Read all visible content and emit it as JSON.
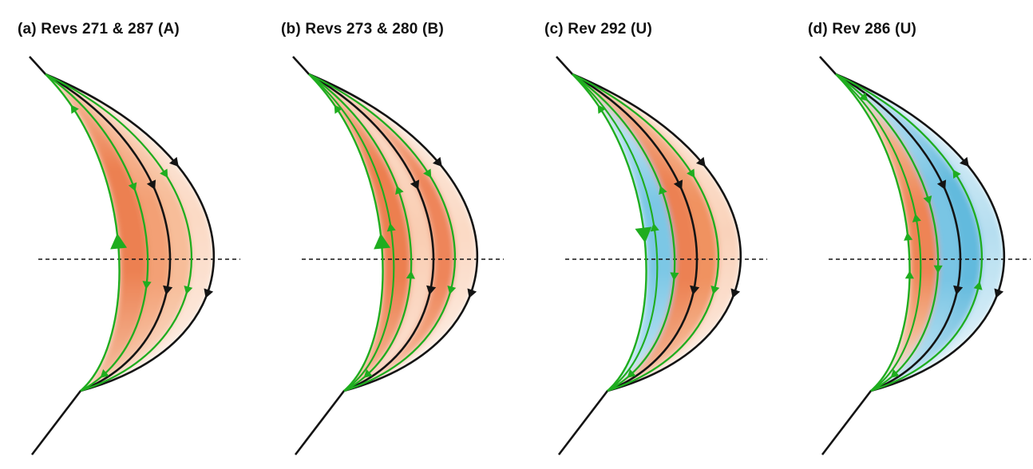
{
  "figure": {
    "description": "Four-panel schematic of nested magnetic field lines (black) and flow streamlines (green) in a crescent magnetosphere cross-section with dashed equator line and shaded current regions",
    "colors": {
      "background": "#ffffff",
      "field_line_black": "#141414",
      "flow_line_green": "#1fad1f",
      "deep_orange": "#ec8051",
      "deep_blue": "#6fc1e2"
    },
    "panels": [
      {
        "id": "a",
        "title": "(a) Revs 271 & 287 (A)",
        "extra_inner_line": false,
        "bands": [
          {
            "inner": "G1",
            "outer": "G2",
            "stops": [
              [
                0,
                "#f6bf9f"
              ],
              [
                0.3,
                "#ec8051"
              ],
              [
                0.62,
                "#ec8051"
              ],
              [
                1,
                "#f6c4a6"
              ]
            ]
          },
          {
            "inner": "G2",
            "outer": "K1",
            "stops": [
              [
                0,
                "#f8cdb2"
              ],
              [
                0.4,
                "#f3a075"
              ],
              [
                0.65,
                "#f3a075"
              ],
              [
                1,
                "#f8d2ba"
              ]
            ]
          },
          {
            "inner": "K1",
            "outer": "G3",
            "stops": [
              [
                0,
                "#fbdecb"
              ],
              [
                0.4,
                "#f7bd99"
              ],
              [
                0.65,
                "#f7bd99"
              ],
              [
                1,
                "#fadfce"
              ]
            ]
          },
          {
            "inner": "G3",
            "outer": "K2",
            "stops": [
              [
                0,
                "#fdeee3"
              ],
              [
                0.45,
                "#fbd9c4"
              ],
              [
                1,
                "#fdefe6"
              ]
            ]
          }
        ],
        "arrows": [
          {
            "line": "K2",
            "t": 0.27,
            "dir": "S",
            "kind": "black"
          },
          {
            "line": "K2",
            "t": 0.625,
            "dir": "S",
            "kind": "black"
          },
          {
            "line": "K1",
            "t": 0.33,
            "dir": "S",
            "kind": "black"
          },
          {
            "line": "K1",
            "t": 0.615,
            "dir": "S",
            "kind": "black"
          },
          {
            "line": "G3",
            "t": 0.3,
            "dir": "S",
            "kind": "green"
          },
          {
            "line": "G3",
            "t": 0.615,
            "dir": "S",
            "kind": "green"
          },
          {
            "line": "G2",
            "t": 0.335,
            "dir": "S",
            "kind": "green"
          },
          {
            "line": "G2",
            "t": 0.6,
            "dir": "S",
            "kind": "green"
          },
          {
            "line": "G2",
            "t": 0.91,
            "dir": "S",
            "kind": "green"
          },
          {
            "line": "G1",
            "t": 0.115,
            "dir": "N",
            "kind": "green"
          },
          {
            "line": "G1",
            "t": 0.485,
            "dir": "N",
            "kind": "big"
          }
        ]
      },
      {
        "id": "b",
        "title": "(b) Revs 273 & 280 (B)",
        "extra_inner_line": true,
        "bands": [
          {
            "inner": "G1",
            "outer": "G2",
            "stops": [
              [
                0,
                "#f6c09f"
              ],
              [
                0.3,
                "#ec7f50"
              ],
              [
                0.65,
                "#ec7f50"
              ],
              [
                1,
                "#f5bd9c"
              ]
            ]
          },
          {
            "inner": "G2",
            "outer": "K1",
            "stops": [
              [
                0,
                "#fbe0cf"
              ],
              [
                0.5,
                "#f9cdb2"
              ],
              [
                1,
                "#fce4d6"
              ]
            ]
          },
          {
            "inner": "K1",
            "outer": "G3",
            "stops": [
              [
                0,
                "#f8c8a9"
              ],
              [
                0.35,
                "#ee855a"
              ],
              [
                0.65,
                "#ee855a"
              ],
              [
                1,
                "#f7c2a1"
              ]
            ]
          },
          {
            "inner": "G3",
            "outer": "K2",
            "stops": [
              [
                0,
                "#fdeee3"
              ],
              [
                0.5,
                "#fbd9c4"
              ],
              [
                1,
                "#fdf0e8"
              ]
            ]
          }
        ],
        "arrows": [
          {
            "line": "K2",
            "t": 0.27,
            "dir": "S",
            "kind": "black"
          },
          {
            "line": "K2",
            "t": 0.625,
            "dir": "S",
            "kind": "black"
          },
          {
            "line": "K1",
            "t": 0.33,
            "dir": "S",
            "kind": "black"
          },
          {
            "line": "K1",
            "t": 0.615,
            "dir": "S",
            "kind": "black"
          },
          {
            "line": "G3",
            "t": 0.3,
            "dir": "S",
            "kind": "green"
          },
          {
            "line": "G3",
            "t": 0.615,
            "dir": "S",
            "kind": "green"
          },
          {
            "line": "G2",
            "t": 0.345,
            "dir": "N",
            "kind": "green"
          },
          {
            "line": "G2",
            "t": 0.575,
            "dir": "N",
            "kind": "green"
          },
          {
            "line": "G2",
            "t": 0.91,
            "dir": "S",
            "kind": "green"
          },
          {
            "line": "Ga",
            "t": 0.445,
            "dir": "N",
            "kind": "green"
          },
          {
            "line": "G1",
            "t": 0.115,
            "dir": "N",
            "kind": "green"
          },
          {
            "line": "G1",
            "t": 0.485,
            "dir": "N",
            "kind": "big"
          }
        ]
      },
      {
        "id": "c",
        "title": "(c) Rev 292 (U)",
        "extra_inner_line": true,
        "bands": [
          {
            "inner": "G1",
            "outer": "G2",
            "stops": [
              [
                0,
                "#f7cdb4"
              ],
              [
                0.18,
                "#b4dff0"
              ],
              [
                0.4,
                "#7cc7e5"
              ],
              [
                0.62,
                "#7cc7e5"
              ],
              [
                0.85,
                "#aadcef"
              ],
              [
                1,
                "#e2f2fa"
              ]
            ]
          },
          {
            "inner": "G2",
            "outer": "K1",
            "stops": [
              [
                0,
                "#f6bf9e"
              ],
              [
                0.35,
                "#ec8152"
              ],
              [
                0.65,
                "#ec8152"
              ],
              [
                1,
                "#f5bd9c"
              ]
            ]
          },
          {
            "inner": "K1",
            "outer": "G3",
            "stops": [
              [
                0,
                "#f8c9ab"
              ],
              [
                0.4,
                "#f09261"
              ],
              [
                0.65,
                "#f09261"
              ],
              [
                1,
                "#f8cbae"
              ]
            ]
          },
          {
            "inner": "G3",
            "outer": "K2",
            "stops": [
              [
                0,
                "#fdeada"
              ],
              [
                0.5,
                "#f9d2ba"
              ],
              [
                1,
                "#fdeee4"
              ]
            ]
          }
        ],
        "arrows": [
          {
            "line": "K2",
            "t": 0.27,
            "dir": "S",
            "kind": "black"
          },
          {
            "line": "K2",
            "t": 0.625,
            "dir": "S",
            "kind": "black"
          },
          {
            "line": "K1",
            "t": 0.33,
            "dir": "S",
            "kind": "black"
          },
          {
            "line": "K1",
            "t": 0.615,
            "dir": "S",
            "kind": "black"
          },
          {
            "line": "G3",
            "t": 0.3,
            "dir": "S",
            "kind": "green"
          },
          {
            "line": "G3",
            "t": 0.615,
            "dir": "S",
            "kind": "green"
          },
          {
            "line": "G2",
            "t": 0.345,
            "dir": "N",
            "kind": "green"
          },
          {
            "line": "G2",
            "t": 0.575,
            "dir": "S",
            "kind": "green"
          },
          {
            "line": "G2",
            "t": 0.91,
            "dir": "S",
            "kind": "green"
          },
          {
            "line": "Ga",
            "t": 0.445,
            "dir": "N",
            "kind": "green"
          },
          {
            "line": "G1",
            "t": 0.115,
            "dir": "N",
            "kind": "green"
          },
          {
            "line": "G1",
            "t": 0.46,
            "dir": "S",
            "kind": "big"
          }
        ]
      },
      {
        "id": "d",
        "title": "(d) Rev 286 (U)",
        "extra_inner_line": true,
        "bands": [
          {
            "inner": "G1",
            "outer": "G2",
            "stops": [
              [
                0,
                "#ddeef7"
              ],
              [
                0.22,
                "#f2ae85"
              ],
              [
                0.42,
                "#ee8455"
              ],
              [
                0.62,
                "#ee8455"
              ],
              [
                0.8,
                "#f4b38c"
              ],
              [
                1,
                "#e8f3fa"
              ]
            ]
          },
          {
            "inner": "G2",
            "outer": "K1",
            "stops": [
              [
                0,
                "#cfe9f5"
              ],
              [
                0.35,
                "#79c5e4"
              ],
              [
                0.65,
                "#79c5e4"
              ],
              [
                1,
                "#cce8f4"
              ]
            ]
          },
          {
            "inner": "K1",
            "outer": "G3",
            "stops": [
              [
                0,
                "#c2e3f2"
              ],
              [
                0.35,
                "#62badd"
              ],
              [
                0.65,
                "#62badd"
              ],
              [
                1,
                "#c2e3f2"
              ]
            ]
          },
          {
            "inner": "G3",
            "outer": "K2",
            "stops": [
              [
                0,
                "#e4f2f9"
              ],
              [
                0.5,
                "#b5def0"
              ],
              [
                1,
                "#e7f4fa"
              ]
            ]
          }
        ],
        "arrows": [
          {
            "line": "K2",
            "t": 0.27,
            "dir": "S",
            "kind": "black"
          },
          {
            "line": "K2",
            "t": 0.625,
            "dir": "S",
            "kind": "black"
          },
          {
            "line": "K1",
            "t": 0.33,
            "dir": "S",
            "kind": "black"
          },
          {
            "line": "K1",
            "t": 0.615,
            "dir": "S",
            "kind": "black"
          },
          {
            "line": "G3",
            "t": 0.3,
            "dir": "N",
            "kind": "green"
          },
          {
            "line": "G3",
            "t": 0.605,
            "dir": "N",
            "kind": "green"
          },
          {
            "line": "G2",
            "t": 0.08,
            "dir": "S",
            "kind": "green"
          },
          {
            "line": "G2",
            "t": 0.37,
            "dir": "S",
            "kind": "green"
          },
          {
            "line": "G2",
            "t": 0.555,
            "dir": "S",
            "kind": "green"
          },
          {
            "line": "G2",
            "t": 0.91,
            "dir": "S",
            "kind": "green"
          },
          {
            "line": "Ga",
            "t": 0.42,
            "dir": "N",
            "kind": "green"
          },
          {
            "line": "G1",
            "t": 0.47,
            "dir": "N",
            "kind": "green"
          },
          {
            "line": "G1",
            "t": 0.575,
            "dir": "N",
            "kind": "green"
          }
        ]
      }
    ]
  }
}
